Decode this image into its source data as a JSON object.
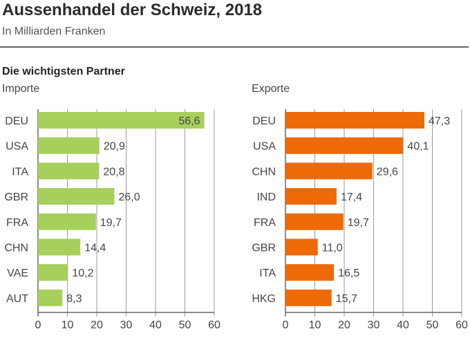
{
  "header": {
    "title": "Aussenhandel der Schweiz, 2018",
    "subtitle": "In Milliarden Franken",
    "section": "Die wichtigsten Partner"
  },
  "colors": {
    "imports": "#a6cf5b",
    "exports": "#ee6a08",
    "grid": "#999999",
    "axis": "#666666"
  },
  "chart_data": [
    {
      "type": "bar",
      "orientation": "horizontal",
      "title": "Importe",
      "categories": [
        "DEU",
        "USA",
        "ITA",
        "GBR",
        "FRA",
        "CHN",
        "VAE",
        "AUT"
      ],
      "values": [
        56.6,
        20.9,
        20.8,
        26.0,
        19.7,
        14.4,
        10.2,
        8.3
      ],
      "value_labels": [
        "56,6",
        "20,9",
        "20,8",
        "26,0",
        "19,7",
        "14,4",
        "10,2",
        "8,3"
      ],
      "xlim": [
        0,
        60
      ],
      "xticks": [
        0,
        10,
        20,
        30,
        40,
        50,
        60
      ],
      "grid": true
    },
    {
      "type": "bar",
      "orientation": "horizontal",
      "title": "Exporte",
      "categories": [
        "DEU",
        "USA",
        "CHN",
        "IND",
        "FRA",
        "GBR",
        "ITA",
        "HKG"
      ],
      "values": [
        47.3,
        40.1,
        29.6,
        17.4,
        19.7,
        11.0,
        16.5,
        15.7
      ],
      "value_labels": [
        "47,3",
        "40,1",
        "29,6",
        "17,4",
        "19,7",
        "11,0",
        "16,5",
        "15,7"
      ],
      "xlim": [
        0,
        60
      ],
      "xticks": [
        0,
        10,
        20,
        30,
        40,
        50,
        60
      ],
      "grid": true
    }
  ]
}
